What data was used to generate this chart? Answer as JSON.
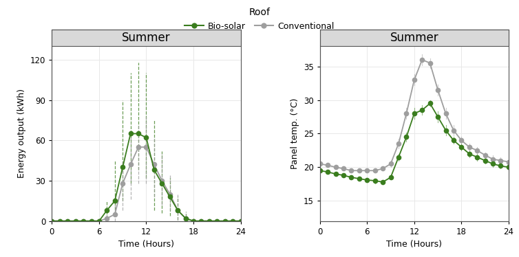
{
  "biosolar_green": "#3a7d1e",
  "conventional_gray": "#9e9e9e",
  "background_color": "#ffffff",
  "panel_header_color": "#d9d9d9",
  "grid_color": "#e8e8e8",
  "energy_hours": [
    0,
    1,
    2,
    3,
    4,
    5,
    6,
    7,
    8,
    9,
    10,
    11,
    12,
    13,
    14,
    15,
    16,
    17,
    18,
    19,
    20,
    21,
    22,
    23,
    24
  ],
  "energy_biosolar_mean": [
    0,
    0,
    0,
    0,
    0,
    0,
    0,
    8,
    15,
    40,
    65,
    65,
    62,
    38,
    28,
    18,
    8,
    2,
    0,
    0,
    0,
    0,
    0,
    0,
    0
  ],
  "energy_biosolar_upper": [
    0,
    0,
    0,
    0,
    0,
    0,
    2,
    15,
    45,
    90,
    110,
    118,
    110,
    75,
    52,
    32,
    18,
    7,
    2,
    0,
    0,
    0,
    0,
    0,
    0
  ],
  "energy_biosolar_lower": [
    0,
    0,
    0,
    0,
    0,
    0,
    0,
    2,
    5,
    15,
    28,
    38,
    32,
    8,
    6,
    4,
    1,
    0,
    0,
    0,
    0,
    0,
    0,
    0,
    0
  ],
  "energy_conventional_mean": [
    0,
    0,
    0,
    0,
    0,
    0,
    0,
    2,
    5,
    28,
    42,
    55,
    55,
    42,
    30,
    20,
    8,
    2,
    0,
    0,
    0,
    0,
    0,
    0,
    0
  ],
  "energy_conventional_upper": [
    0,
    0,
    0,
    0,
    0,
    0,
    2,
    5,
    18,
    45,
    65,
    72,
    78,
    62,
    50,
    35,
    20,
    7,
    2,
    0,
    0,
    0,
    0,
    0,
    0
  ],
  "energy_conventional_lower": [
    0,
    0,
    0,
    0,
    0,
    0,
    0,
    0,
    0,
    8,
    16,
    28,
    28,
    18,
    12,
    8,
    1,
    0,
    0,
    0,
    0,
    0,
    0,
    0,
    0
  ],
  "temp_hours": [
    0,
    1,
    2,
    3,
    4,
    5,
    6,
    7,
    8,
    9,
    10,
    11,
    12,
    13,
    14,
    15,
    16,
    17,
    18,
    19,
    20,
    21,
    22,
    23,
    24
  ],
  "temp_biosolar_mean": [
    19.5,
    19.3,
    19.0,
    18.8,
    18.5,
    18.3,
    18.1,
    18.0,
    17.8,
    18.5,
    21.5,
    24.5,
    28.0,
    28.5,
    29.5,
    27.5,
    25.5,
    24.0,
    23.0,
    22.0,
    21.5,
    21.0,
    20.5,
    20.2,
    20.0
  ],
  "temp_biosolar_upper": [
    19.8,
    19.5,
    19.2,
    19.0,
    18.8,
    18.6,
    18.4,
    18.2,
    18.0,
    18.8,
    22.0,
    25.2,
    28.8,
    29.2,
    30.0,
    28.3,
    26.3,
    24.5,
    23.5,
    22.5,
    22.0,
    21.5,
    21.0,
    20.8,
    20.5
  ],
  "temp_biosolar_lower": [
    19.2,
    19.0,
    18.8,
    18.6,
    18.2,
    18.0,
    17.8,
    17.6,
    17.5,
    18.2,
    21.0,
    23.8,
    27.2,
    27.8,
    29.0,
    26.7,
    24.7,
    23.5,
    22.5,
    21.5,
    21.0,
    20.5,
    20.0,
    19.8,
    19.5
  ],
  "temp_conventional_mean": [
    20.5,
    20.3,
    20.0,
    19.8,
    19.5,
    19.5,
    19.5,
    19.5,
    19.8,
    20.5,
    23.5,
    28.0,
    33.0,
    36.0,
    35.5,
    31.5,
    28.0,
    25.5,
    24.0,
    23.0,
    22.5,
    21.8,
    21.2,
    21.0,
    20.8
  ],
  "temp_conventional_upper": [
    20.8,
    20.6,
    20.3,
    20.1,
    19.8,
    19.8,
    19.8,
    19.8,
    20.1,
    21.0,
    24.2,
    28.8,
    33.8,
    36.8,
    36.2,
    32.3,
    28.8,
    26.3,
    24.5,
    23.5,
    23.0,
    22.2,
    21.8,
    21.5,
    21.2
  ],
  "temp_conventional_lower": [
    20.2,
    20.0,
    19.7,
    19.5,
    19.2,
    19.2,
    19.2,
    19.2,
    19.5,
    20.0,
    22.8,
    27.2,
    32.2,
    35.2,
    34.8,
    30.7,
    27.2,
    24.7,
    23.5,
    22.5,
    22.0,
    21.4,
    20.6,
    20.5,
    20.4
  ],
  "energy_ylabel": "Energy output (kWh)",
  "temp_ylabel": "Panel temp. (°C)",
  "xlabel": "Time (Hours)",
  "panel_title": "Summer",
  "legend_title": "Roof",
  "legend_biosolar": "Bio-solar",
  "legend_conventional": "Conventional",
  "energy_ylim": [
    0,
    130
  ],
  "temp_ylim": [
    12,
    38
  ],
  "energy_yticks": [
    0,
    30,
    60,
    90,
    120
  ],
  "temp_yticks": [
    15,
    20,
    25,
    30,
    35
  ],
  "xticks": [
    0,
    6,
    12,
    18,
    24
  ]
}
